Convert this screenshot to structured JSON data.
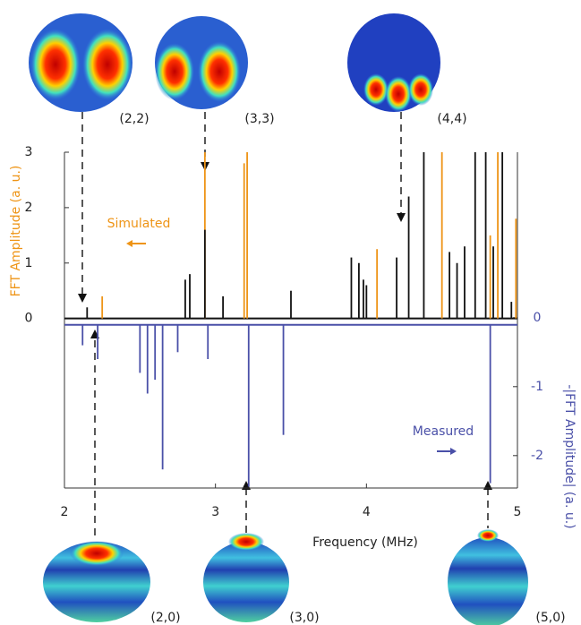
{
  "chart_data": {
    "type": "stem",
    "xlabel": "Frequency (MHz)",
    "ylabel": "FFT Amplitude (a. u.)",
    "y2label": "-|FFT Amplitude| (a. u.)",
    "xlim": [
      2,
      5
    ],
    "xticks": [
      2,
      3,
      4,
      5
    ],
    "ylim": [
      -3.06,
      3
    ],
    "yticks": [
      0,
      1,
      2,
      3
    ],
    "y2lim": [
      -2.47,
      2.4
    ],
    "y2ticks": [
      0,
      -1,
      -2
    ],
    "series": [
      {
        "name": "Simulated",
        "color": "#ee9416",
        "x": [
          2.25,
          2.93,
          3.19,
          3.21,
          4.07,
          4.5,
          4.82,
          4.87,
          4.99
        ],
        "values": [
          0.4,
          3,
          2.8,
          3,
          1.25,
          3,
          1.5,
          3,
          1.8
        ]
      },
      {
        "color": "#111111",
        "x": [
          2.15,
          2.8,
          2.83,
          2.93,
          3.05,
          3.5,
          3.9,
          3.95,
          3.98,
          4.0,
          4.2,
          4.28,
          4.38,
          4.55,
          4.6,
          4.65,
          4.72,
          4.79,
          4.84,
          4.9,
          4.96
        ],
        "values": [
          0.2,
          0.7,
          0.8,
          1.6,
          0.4,
          0.5,
          1.1,
          1.0,
          0.7,
          0.6,
          1.1,
          2.2,
          3,
          1.2,
          1.0,
          1.3,
          3,
          3,
          1.3,
          3,
          0.3
        ]
      },
      {
        "name": "Measured",
        "color": "#4a50a8",
        "axis": "y2",
        "x": [
          2.12,
          2.22,
          2.5,
          2.55,
          2.6,
          2.65,
          2.75,
          2.95,
          3.22,
          3.45,
          4.82
        ],
        "values": [
          -0.4,
          -0.6,
          -0.8,
          -1.1,
          -0.9,
          -2.2,
          -0.5,
          -0.6,
          -2.45,
          -1.7,
          -2.4
        ]
      }
    ],
    "annotations": [
      "(2,2)",
      "(3,3)",
      "(4,4)",
      "(2,0)",
      "(3,0)",
      "(5,0)"
    ]
  }
}
